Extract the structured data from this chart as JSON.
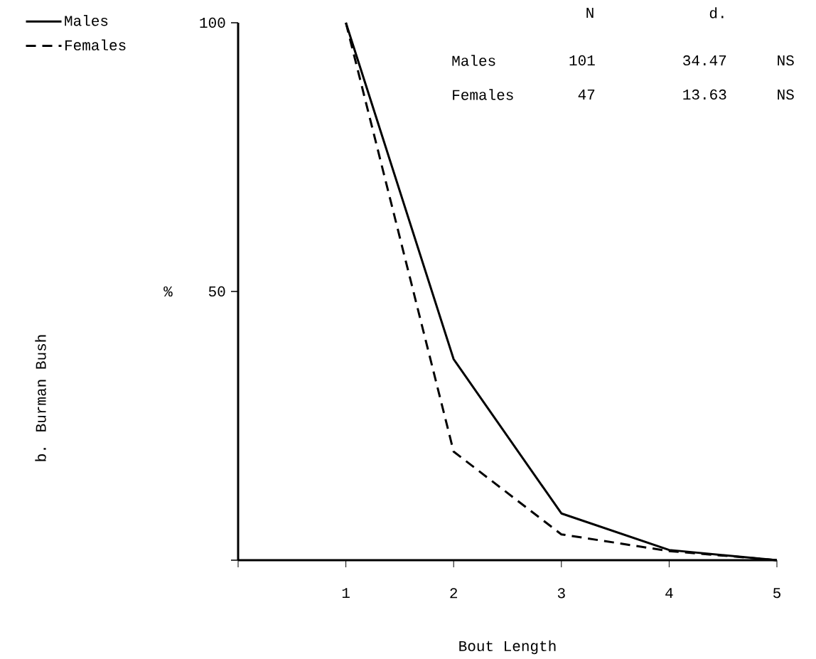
{
  "chart_data": {
    "type": "line",
    "title": "b. Burman Bush",
    "xlabel": "Bout Length",
    "ylabel": "%",
    "x": [
      1,
      2,
      3,
      4,
      5
    ],
    "series": [
      {
        "name": "Males",
        "color": "#000000",
        "line_style": "solid",
        "values": [
          100,
          37.4,
          8.7,
          1.9,
          0
        ]
      },
      {
        "name": "Females",
        "color": "#000000",
        "line_style": "dashed",
        "values": [
          100,
          20.2,
          4.8,
          1.7,
          0
        ]
      }
    ],
    "xlim": [
      0,
      5
    ],
    "xticks": [
      {
        "value": 0,
        "label": null
      },
      1,
      2,
      3,
      4,
      5
    ],
    "ylim": [
      0,
      100
    ],
    "yticks": [
      {
        "value": 0,
        "label": null
      },
      50,
      100
    ],
    "grid": false,
    "legend": "top left",
    "marker": "none",
    "annotations": [
      "N",
      "d.",
      "Males",
      "101",
      "34.47",
      "NS",
      "Females",
      "47",
      "13.63",
      "NS"
    ]
  }
}
